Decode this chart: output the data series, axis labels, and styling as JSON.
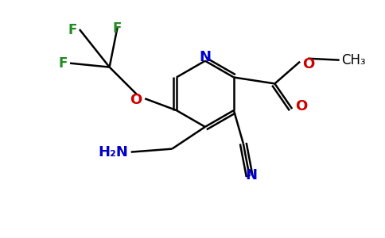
{
  "background_color": "#ffffff",
  "figsize": [
    4.84,
    3.0
  ],
  "dpi": 100,
  "bond_color": "#000000",
  "bond_width": 1.8,
  "colors": {
    "N": "#0000cc",
    "O": "#cc0000",
    "F": "#228B22",
    "C": "#000000"
  }
}
